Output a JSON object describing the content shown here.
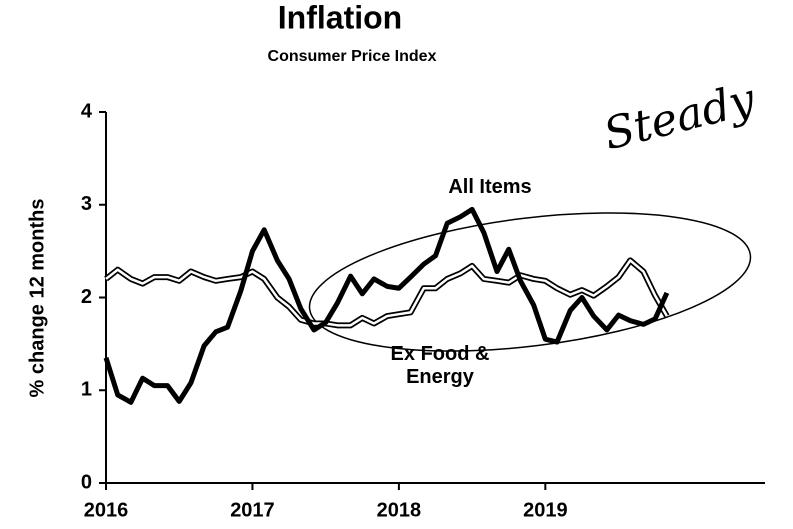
{
  "chart_data": {
    "type": "line",
    "title": "Inflation",
    "subtitle": "Consumer Price Index",
    "ylabel": "% change 12 months",
    "annotations": [
      "Steady"
    ],
    "x": [
      2016,
      2016.08,
      2016.17,
      2016.25,
      2016.33,
      2016.42,
      2016.5,
      2016.58,
      2016.67,
      2016.75,
      2016.83,
      2016.92,
      2017,
      2017.08,
      2017.17,
      2017.25,
      2017.33,
      2017.42,
      2017.5,
      2017.58,
      2017.67,
      2017.75,
      2017.83,
      2017.92,
      2018,
      2018.08,
      2018.17,
      2018.25,
      2018.33,
      2018.42,
      2018.5,
      2018.58,
      2018.67,
      2018.75,
      2018.83,
      2018.92,
      2019,
      2019.08,
      2019.17,
      2019.25,
      2019.33,
      2019.42,
      2019.5,
      2019.58,
      2019.67,
      2019.75,
      2019.83
    ],
    "series": [
      {
        "name": "All Items",
        "color": "#000000",
        "values": [
          1.35,
          0.95,
          0.87,
          1.13,
          1.05,
          1.05,
          0.88,
          1.08,
          1.48,
          1.63,
          1.68,
          2.07,
          2.5,
          2.73,
          2.4,
          2.2,
          1.88,
          1.65,
          1.73,
          1.94,
          2.23,
          2.04,
          2.2,
          2.12,
          2.1,
          2.22,
          2.36,
          2.45,
          2.8,
          2.87,
          2.95,
          2.7,
          2.28,
          2.52,
          2.18,
          1.92,
          1.55,
          1.52,
          1.86,
          2.0,
          1.8,
          1.65,
          1.81,
          1.75,
          1.71,
          1.77,
          2.05
        ]
      },
      {
        "name": "Ex Food & Energy",
        "color": "#000000",
        "values": [
          2.2,
          2.3,
          2.2,
          2.15,
          2.22,
          2.22,
          2.18,
          2.28,
          2.22,
          2.18,
          2.2,
          2.22,
          2.28,
          2.2,
          2.0,
          1.9,
          1.76,
          1.72,
          1.72,
          1.7,
          1.7,
          1.78,
          1.72,
          1.8,
          1.82,
          1.84,
          2.1,
          2.1,
          2.2,
          2.26,
          2.34,
          2.2,
          2.18,
          2.16,
          2.24,
          2.2,
          2.18,
          2.1,
          2.03,
          2.08,
          2.02,
          2.12,
          2.22,
          2.4,
          2.28,
          2.02,
          1.8
        ]
      }
    ],
    "xlim": [
      2016,
      2020.5
    ],
    "xticks": [
      2016,
      2017,
      2018,
      2019
    ],
    "ylim": [
      0,
      4
    ],
    "yticks": [
      0,
      1,
      2,
      3,
      4
    ]
  }
}
